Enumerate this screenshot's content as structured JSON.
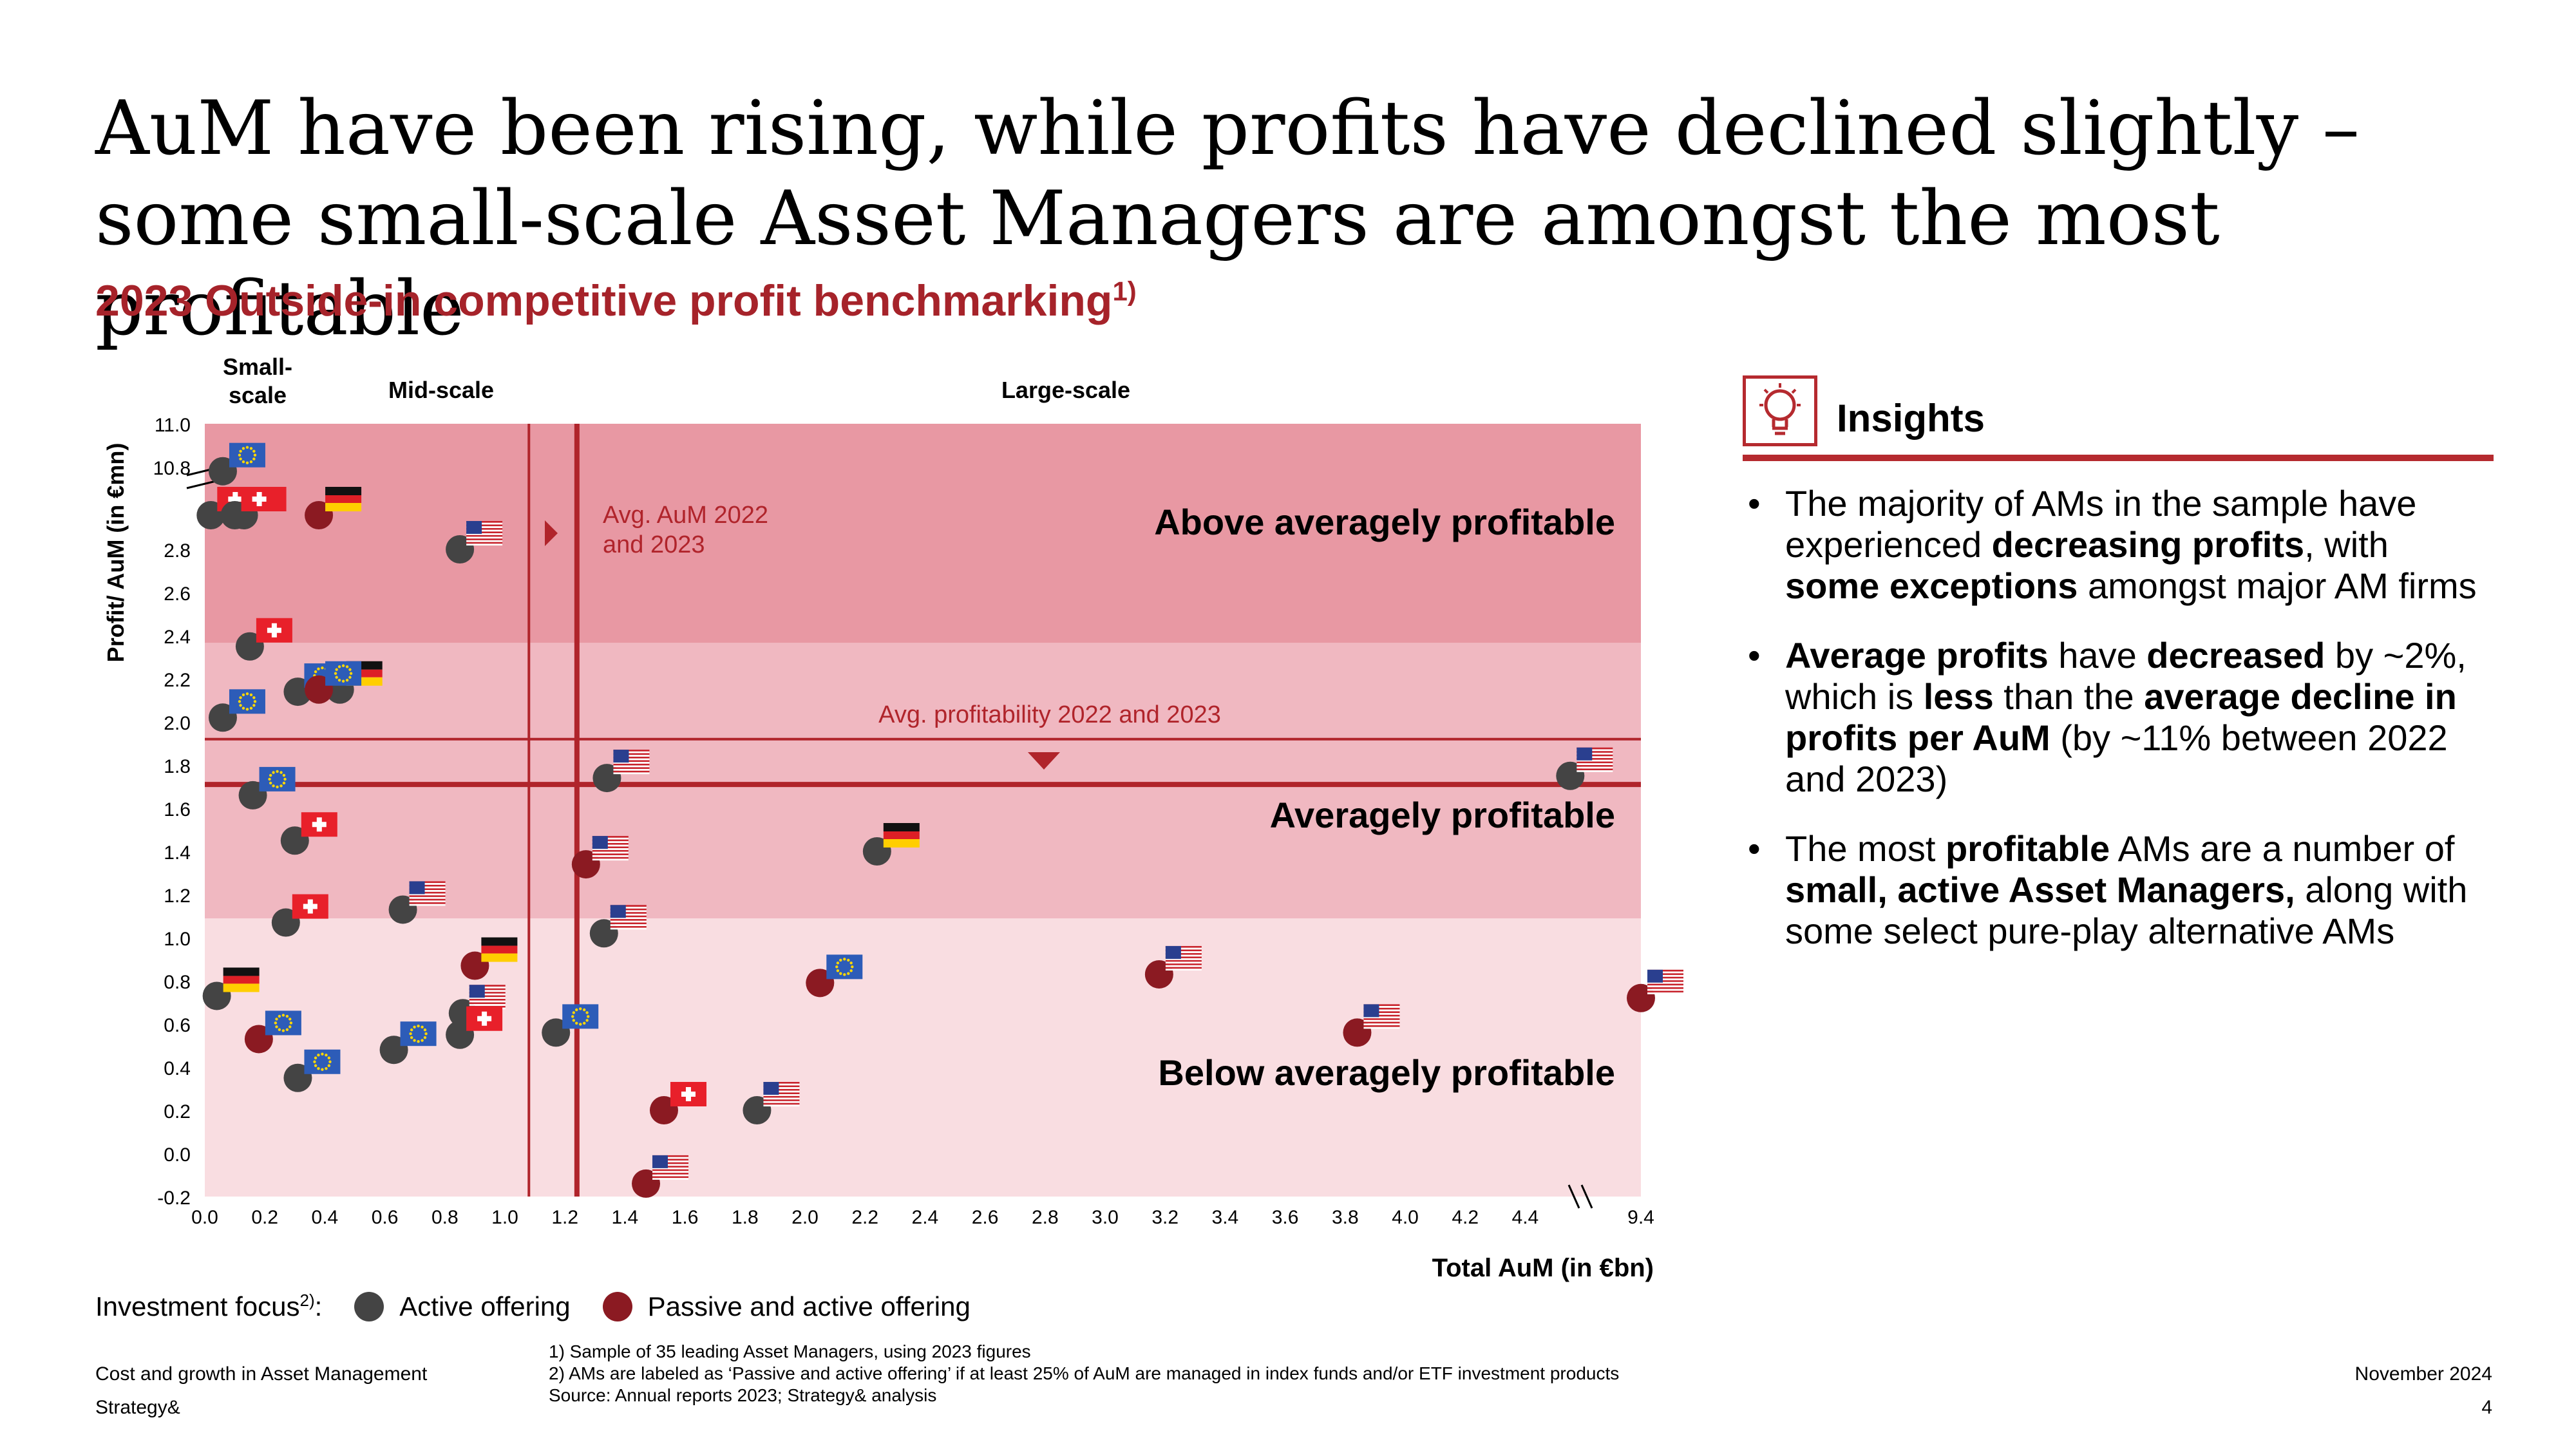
{
  "title": "AuM have been rising, while profits have declined slightly – some small-scale Asset Managers are amongst the most profitable",
  "subtitle": "2023 Outside-in competitive profit benchmarking",
  "subtitle_sup": "1)",
  "insights": {
    "heading": "Insights",
    "bullets": [
      [
        {
          "t": "The majority of AMs in the sample have experienced "
        },
        {
          "t": "decreasing profits",
          "b": true
        },
        {
          "t": ", with "
        },
        {
          "t": "some exceptions",
          "b": true
        },
        {
          "t": " amongst major AM firms"
        }
      ],
      [
        {
          "t": "Average profits",
          "b": true
        },
        {
          "t": " have "
        },
        {
          "t": "decreased",
          "b": true
        },
        {
          "t": " by ~2%, which is "
        },
        {
          "t": "less",
          "b": true
        },
        {
          "t": " than the "
        },
        {
          "t": "average decline in profits per AuM",
          "b": true
        },
        {
          "t": " (by ~11% between 2022 and 2023)"
        }
      ],
      [
        {
          "t": "The most "
        },
        {
          "t": "profitable",
          "b": true
        },
        {
          "t": " AMs are a number of "
        },
        {
          "t": "small, active Asset Managers,",
          "b": true
        },
        {
          "t": " along with some select pure-play alternative AMs"
        }
      ]
    ]
  },
  "legend": {
    "label": "Investment focus",
    "label_sup": "2)",
    "colon": ":",
    "active": "Active offering",
    "passive": "Passive and active offering"
  },
  "footer": {
    "left1": "Cost and growth in Asset Management",
    "left2": "Strategy&",
    "note1": "1) Sample of 35 leading Asset Managers, using 2023 figures",
    "note2": "2) AMs are labeled as ‘Passive and active offering’ if at least 25% of AuM are managed in index funds and/or ETF investment products",
    "source": "Source: Annual reports 2023; Strategy& analysis",
    "date": "November 2024",
    "page": "4"
  },
  "colors": {
    "accent": "#a6232a",
    "line": "#b0242b",
    "active": "#444444",
    "passive": "#8b1a22",
    "zone_above": "#e898a3",
    "zone_avg": "#f0b8c1",
    "zone_below": "#f9dde1"
  },
  "chart_data": {
    "type": "scatter",
    "xlabel": "Total AuM (in €bn)",
    "ylabel": "Profit/ AuM (in €mn)",
    "x_ticks": [
      "0.0",
      "0.2",
      "0.4",
      "0.6",
      "0.8",
      "1.0",
      "1.2",
      "1.4",
      "1.6",
      "1.8",
      "2.0",
      "2.2",
      "2.4",
      "2.6",
      "2.8",
      "3.0",
      "3.2",
      "3.4",
      "3.6",
      "3.8",
      "4.0",
      "4.2",
      "4.4",
      "9.4"
    ],
    "y_ticks": [
      "11.0",
      "10.8",
      "2.8",
      "2.6",
      "2.4",
      "2.2",
      "2.0",
      "1.8",
      "1.6",
      "1.4",
      "1.2",
      "1.0",
      "0.8",
      "0.6",
      "0.4",
      "0.2",
      "0.0",
      "-0.2"
    ],
    "xlim": [
      0,
      9.4
    ],
    "x_axis_break": [
      4.6,
      9.2
    ],
    "ylim": [
      -0.2,
      11.0
    ],
    "y_axis_break": [
      2.9,
      10.7
    ],
    "scale_bands": [
      {
        "label": "Small-\nscale",
        "from": 0.0,
        "to": 0.2
      },
      {
        "label": "Mid-scale",
        "from": 0.2,
        "to": 1.25
      },
      {
        "label": "Large-scale",
        "from": 1.25,
        "to": 9.4
      }
    ],
    "zones": [
      {
        "label": "Above averagely profitable",
        "from": 2.4,
        "to": 11.0
      },
      {
        "label": "Averagely profitable",
        "from": 1.1,
        "to": 2.4
      },
      {
        "label": "Below averagely profitable",
        "from": -0.2,
        "to": 1.1
      }
    ],
    "reference_lines": {
      "avg_aum_2022": 1.08,
      "avg_aum_2023": 1.24,
      "avg_aum_label": "Avg. AuM 2022\nand 2023",
      "avg_profit_2022": 1.92,
      "avg_profit_2023": 1.71,
      "avg_profit_label": "Avg. profitability 2022 and 2023"
    },
    "series": [
      {
        "name": "Active offering",
        "points": [
          {
            "x": 0.06,
            "y": 10.78,
            "flag": "eu"
          },
          {
            "x": 0.13,
            "y": 10.69,
            "flag": "ch"
          },
          {
            "x": 0.02,
            "y": 2.91,
            "flag": "ch"
          },
          {
            "x": 0.1,
            "y": 2.91,
            "flag": "ch"
          },
          {
            "x": 0.85,
            "y": 2.8,
            "flag": "us"
          },
          {
            "x": 0.15,
            "y": 2.35,
            "flag": "ch"
          },
          {
            "x": 0.31,
            "y": 2.14,
            "flag": "eu"
          },
          {
            "x": 0.45,
            "y": 2.15,
            "flag": "de"
          },
          {
            "x": 0.06,
            "y": 2.02,
            "flag": "eu"
          },
          {
            "x": 0.3,
            "y": 1.45,
            "flag": "ch"
          },
          {
            "x": 0.16,
            "y": 1.66,
            "flag": "eu"
          },
          {
            "x": 1.34,
            "y": 1.74,
            "flag": "us"
          },
          {
            "x": 4.55,
            "y": 1.75,
            "flag": "us"
          },
          {
            "x": 2.24,
            "y": 1.4,
            "flag": "de"
          },
          {
            "x": 0.66,
            "y": 1.13,
            "flag": "us"
          },
          {
            "x": 0.27,
            "y": 1.07,
            "flag": "ch"
          },
          {
            "x": 1.33,
            "y": 1.02,
            "flag": "us"
          },
          {
            "x": 0.04,
            "y": 0.73,
            "flag": "de"
          },
          {
            "x": 0.86,
            "y": 0.65,
            "flag": "us"
          },
          {
            "x": 0.63,
            "y": 0.48,
            "flag": "eu"
          },
          {
            "x": 0.85,
            "y": 0.55,
            "flag": "ch"
          },
          {
            "x": 1.17,
            "y": 0.56,
            "flag": "eu"
          },
          {
            "x": 0.31,
            "y": 0.35,
            "flag": "eu"
          },
          {
            "x": 1.84,
            "y": 0.2,
            "flag": "us"
          }
        ]
      },
      {
        "name": "Passive and active offering",
        "points": [
          {
            "x": 0.38,
            "y": 2.92,
            "flag": "de"
          },
          {
            "x": 0.38,
            "y": 2.15,
            "flag": "eu"
          },
          {
            "x": 1.27,
            "y": 1.34,
            "flag": "us"
          },
          {
            "x": 0.9,
            "y": 0.87,
            "flag": "de"
          },
          {
            "x": 2.05,
            "y": 0.79,
            "flag": "eu"
          },
          {
            "x": 3.18,
            "y": 0.83,
            "flag": "us"
          },
          {
            "x": 4.64,
            "y": 0.72,
            "flag": "us"
          },
          {
            "x": 3.84,
            "y": 0.56,
            "flag": "us"
          },
          {
            "x": 0.18,
            "y": 0.53,
            "flag": "eu"
          },
          {
            "x": 1.53,
            "y": 0.2,
            "flag": "ch"
          },
          {
            "x": 1.47,
            "y": -0.14,
            "flag": "us"
          }
        ]
      }
    ]
  }
}
